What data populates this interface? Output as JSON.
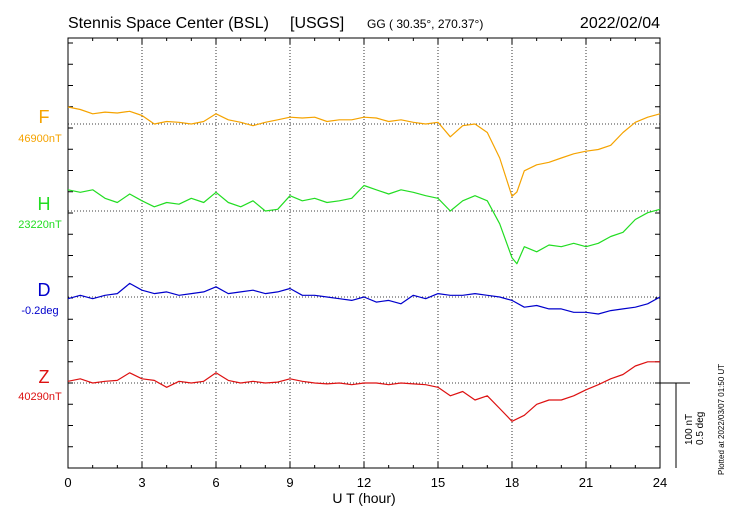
{
  "chart_data": {
    "type": "line",
    "title": "Stennis Space Center (BSL)",
    "network": "[USGS]",
    "coords": "GG ( 30.35°, 270.37°)",
    "date": "2022/02/04",
    "xlabel": "U T (hour)",
    "xlim": [
      0,
      24
    ],
    "xticks": [
      "0",
      "3",
      "6",
      "9",
      "12",
      "15",
      "18",
      "21",
      "24"
    ],
    "grid": true,
    "plotted_note": "Plotted at 2022/03/07 01:50 UT",
    "scale_label_nt": "100 nT",
    "scale_label_deg": "0.5 deg",
    "colors": {
      "F": "#f5a300",
      "H": "#22dd22",
      "D": "#0000cc",
      "Z": "#dd1111",
      "grid": "#000000"
    },
    "series": [
      {
        "name": "F",
        "baseline_label": "46900nT",
        "x": [
          0,
          0.5,
          1,
          1.5,
          2,
          2.5,
          3,
          3.5,
          4,
          4.5,
          5,
          5.5,
          6,
          6.5,
          7,
          7.5,
          8,
          8.5,
          9,
          9.5,
          10,
          10.5,
          11,
          11.5,
          12,
          12.5,
          13,
          13.5,
          14,
          14.5,
          15,
          15.5,
          16,
          16.5,
          17,
          17.5,
          18,
          18.2,
          18.5,
          19,
          19.5,
          20,
          20.5,
          21,
          21.5,
          22,
          22.5,
          23,
          23.5,
          24
        ],
        "y": [
          20,
          17,
          12,
          14,
          13,
          15,
          10,
          0,
          3,
          2,
          0,
          3,
          12,
          5,
          2,
          -2,
          2,
          5,
          8,
          7,
          8,
          3,
          5,
          5,
          8,
          7,
          3,
          5,
          2,
          0,
          2,
          -15,
          -2,
          0,
          -10,
          -40,
          -85,
          -80,
          -55,
          -48,
          -45,
          -40,
          -35,
          -32,
          -30,
          -25,
          -10,
          2,
          8,
          12
        ]
      },
      {
        "name": "H",
        "baseline_label": "23220nT",
        "x": [
          0,
          0.5,
          1,
          1.5,
          2,
          2.5,
          3,
          3.5,
          4,
          4.5,
          5,
          5.5,
          6,
          6.5,
          7,
          7.5,
          8,
          8.5,
          9,
          9.5,
          10,
          10.5,
          11,
          11.5,
          12,
          12.5,
          13,
          13.5,
          14,
          14.5,
          15,
          15.5,
          16,
          16.5,
          17,
          17.5,
          18,
          18.2,
          18.5,
          19,
          19.5,
          20,
          20.5,
          21,
          21.5,
          22,
          22.5,
          23,
          23.5,
          24
        ],
        "y": [
          25,
          22,
          25,
          15,
          10,
          20,
          12,
          5,
          10,
          8,
          15,
          10,
          22,
          10,
          5,
          12,
          0,
          2,
          18,
          12,
          15,
          10,
          12,
          15,
          30,
          25,
          20,
          25,
          22,
          18,
          15,
          0,
          12,
          18,
          12,
          -15,
          -55,
          -62,
          -42,
          -48,
          -40,
          -42,
          -38,
          -42,
          -38,
          -30,
          -25,
          -10,
          -2,
          2
        ]
      },
      {
        "name": "D",
        "baseline_label": "-0.2deg",
        "x": [
          0,
          0.5,
          1,
          1.5,
          2,
          2.5,
          3,
          3.5,
          4,
          4.5,
          5,
          5.5,
          6,
          6.5,
          7,
          7.5,
          8,
          8.5,
          9,
          9.5,
          10,
          10.5,
          11,
          11.5,
          12,
          12.5,
          13,
          13.5,
          14,
          14.5,
          15,
          15.5,
          16,
          16.5,
          17,
          17.5,
          18,
          18.5,
          19,
          19.5,
          20,
          20.5,
          21,
          21.5,
          22,
          22.5,
          23,
          23.5,
          24
        ],
        "y": [
          -0.01,
          0.01,
          -0.01,
          0.01,
          0.02,
          0.08,
          0.04,
          0.02,
          0.03,
          0.01,
          0.02,
          0.03,
          0.06,
          0.02,
          0.03,
          0.04,
          0.02,
          0.03,
          0.05,
          0.01,
          0.01,
          0.0,
          -0.01,
          -0.02,
          0.0,
          -0.03,
          -0.02,
          -0.04,
          0.01,
          -0.01,
          0.02,
          0.01,
          0.01,
          0.02,
          0.01,
          0.0,
          -0.02,
          -0.06,
          -0.05,
          -0.07,
          -0.07,
          -0.09,
          -0.09,
          -0.1,
          -0.08,
          -0.07,
          -0.06,
          -0.04,
          0.0
        ]
      },
      {
        "name": "Z",
        "baseline_label": "40290nT",
        "x": [
          0,
          0.5,
          1,
          1.5,
          2,
          2.5,
          3,
          3.5,
          4,
          4.5,
          5,
          5.5,
          6,
          6.5,
          7,
          7.5,
          8,
          8.5,
          9,
          9.5,
          10,
          10.5,
          11,
          11.5,
          12,
          12.5,
          13,
          13.5,
          14,
          14.5,
          15,
          15.5,
          16,
          16.5,
          17,
          17.5,
          18,
          18.5,
          19,
          19.5,
          20,
          20.5,
          21,
          21.5,
          22,
          22.5,
          23,
          23.5,
          24
        ],
        "y": [
          2,
          5,
          0,
          2,
          3,
          12,
          5,
          3,
          -5,
          2,
          0,
          2,
          12,
          3,
          0,
          2,
          0,
          1,
          5,
          2,
          0,
          -1,
          0,
          -2,
          0,
          0,
          -2,
          0,
          -1,
          -2,
          -5,
          -15,
          -10,
          -20,
          -15,
          -30,
          -45,
          -38,
          -25,
          -20,
          -20,
          -15,
          -8,
          -2,
          5,
          10,
          20,
          25,
          25
        ]
      }
    ]
  }
}
